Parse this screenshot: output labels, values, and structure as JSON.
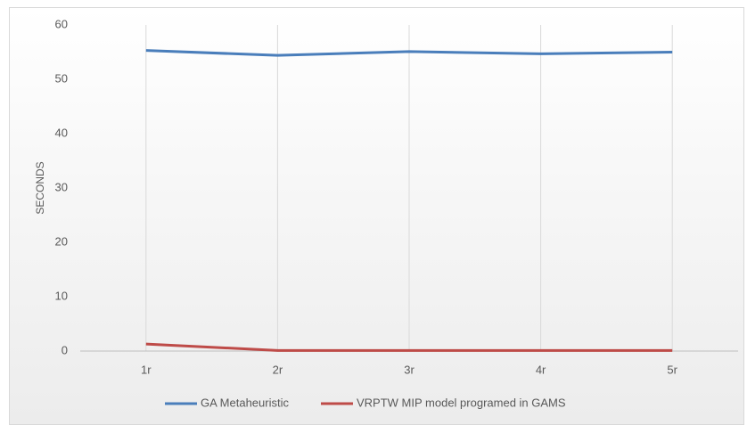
{
  "chart_data": {
    "type": "line",
    "y_label": "SECONDS",
    "categories": [
      "1r",
      "2r",
      "3r",
      "4r",
      "5r"
    ],
    "series": [
      {
        "name": "GA Metaheuristic",
        "color": "#4a7ebb",
        "values": [
          55.3,
          54.4,
          55.1,
          54.7,
          55.0
        ]
      },
      {
        "name": "VRPTW MIP model programed in GAMS",
        "color": "#be4b48",
        "values": [
          1.3,
          0.1,
          0.1,
          0.1,
          0.1
        ]
      }
    ],
    "ylim": [
      0,
      60
    ],
    "yticks": [
      0,
      10,
      20,
      30,
      40,
      50,
      60
    ],
    "grid": "x",
    "legend": "bottom"
  }
}
